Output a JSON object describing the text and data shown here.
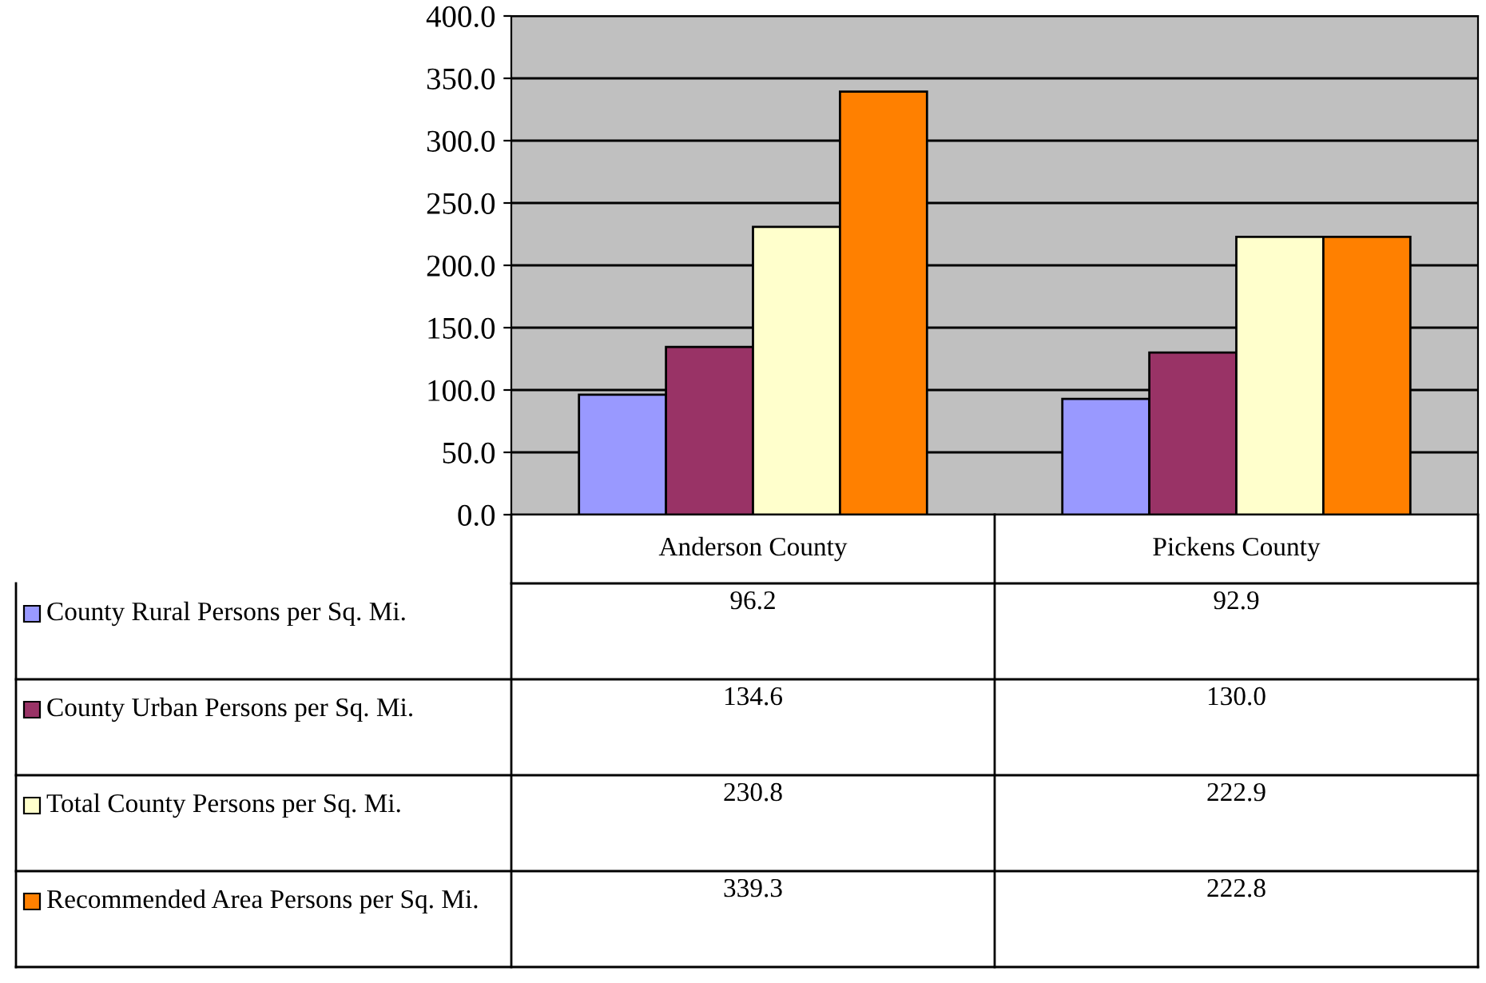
{
  "chart_data": {
    "type": "bar",
    "categories": [
      "Anderson County",
      "Pickens County"
    ],
    "series": [
      {
        "name": "County Rural Persons per Sq. Mi.",
        "color": "#9999ff",
        "values": [
          96.2,
          92.9
        ],
        "value_labels": [
          "96.2",
          "92.9"
        ]
      },
      {
        "name": "County Urban Persons per Sq. Mi.",
        "color": "#993366",
        "values": [
          134.6,
          130.0
        ],
        "value_labels": [
          "134.6",
          "130.0"
        ]
      },
      {
        "name": "Total County Persons per Sq. Mi.",
        "color": "#ffffcc",
        "values": [
          230.8,
          222.9
        ],
        "value_labels": [
          "230.8",
          "222.9"
        ]
      },
      {
        "name": "Recommended Area Persons per Sq. Mi.",
        "color": "#ff8000",
        "values": [
          339.3,
          222.8
        ],
        "value_labels": [
          "339.3",
          "222.8"
        ]
      }
    ],
    "ylim": [
      0,
      400
    ],
    "yticks": [
      {
        "value": 0,
        "label": "0.0"
      },
      {
        "value": 50,
        "label": "50.0"
      },
      {
        "value": 100,
        "label": "100.0"
      },
      {
        "value": 150,
        "label": "150.0"
      },
      {
        "value": 200,
        "label": "200.0"
      },
      {
        "value": 250,
        "label": "250.0"
      },
      {
        "value": 300,
        "label": "300.0"
      },
      {
        "value": 350,
        "label": "350.0"
      },
      {
        "value": 400,
        "label": "400.0"
      }
    ],
    "grid": "y",
    "legend": "bottom left"
  }
}
